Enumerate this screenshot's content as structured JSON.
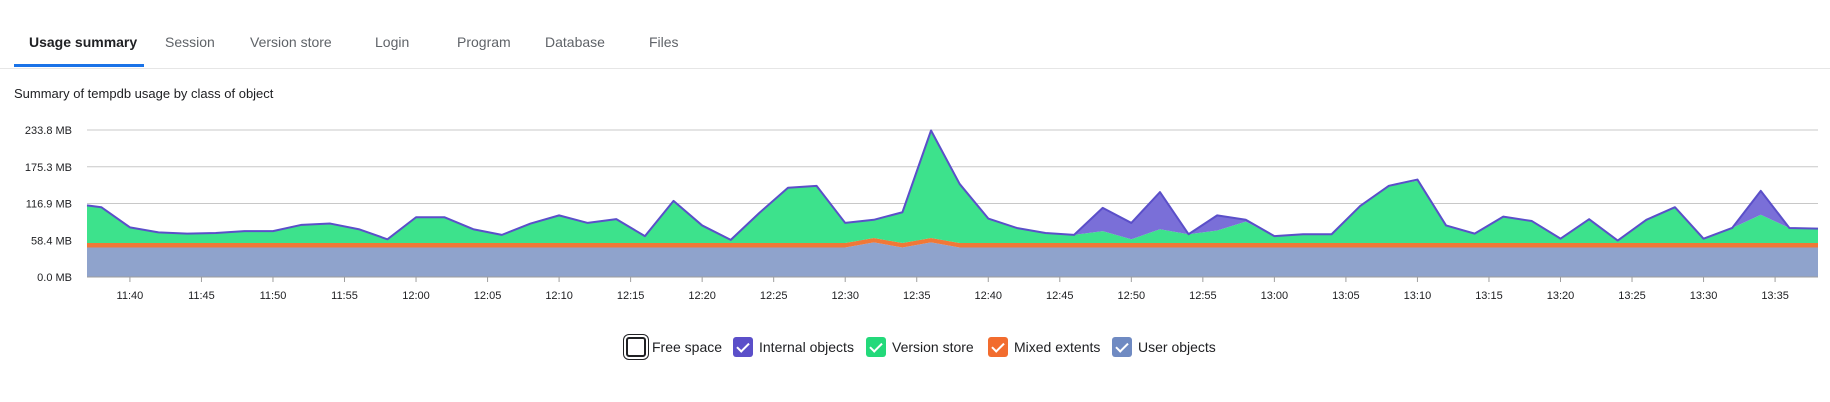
{
  "tabs": [
    {
      "label": "Usage summary",
      "active": true
    },
    {
      "label": "Session",
      "active": false
    },
    {
      "label": "Version store",
      "active": false
    },
    {
      "label": "Login",
      "active": false
    },
    {
      "label": "Program",
      "active": false
    },
    {
      "label": "Database",
      "active": false
    },
    {
      "label": "Files",
      "active": false
    }
  ],
  "subtitle": "Summary of tempdb usage by class of object",
  "chart_data": {
    "type": "area",
    "stacked": true,
    "grid": true,
    "legend_position": "bottom",
    "ylim": [
      0,
      233.8
    ],
    "y_ticks": [
      0,
      58.4,
      116.9,
      175.3,
      233.8
    ],
    "y_tick_labels": [
      "0.0 MB",
      "58.4 MB",
      "116.9 MB",
      "175.3 MB",
      "233.8 MB"
    ],
    "x_tick_labels": [
      "11:40",
      "11:45",
      "11:50",
      "11:55",
      "12:00",
      "12:05",
      "12:10",
      "12:15",
      "12:20",
      "12:25",
      "12:30",
      "12:35",
      "12:40",
      "12:45",
      "12:50",
      "12:55",
      "13:00",
      "13:05",
      "13:10",
      "13:15",
      "13:20",
      "13:25",
      "13:30",
      "13:35"
    ],
    "x_start": "11:37",
    "x_end": "13:38",
    "series": [
      {
        "name": "User objects",
        "color": "#8fa3cc",
        "points": [
          [
            "11:37",
            47
          ],
          [
            "12:30",
            47
          ],
          [
            "12:32",
            55
          ],
          [
            "12:34",
            47
          ],
          [
            "12:36",
            55
          ],
          [
            "12:38",
            47
          ],
          [
            "13:38",
            47
          ]
        ]
      },
      {
        "name": "Mixed extents",
        "color": "#f07837",
        "points": [
          [
            "11:37",
            7
          ],
          [
            "12:30",
            7
          ],
          [
            "12:32",
            7
          ],
          [
            "12:34",
            7
          ],
          [
            "12:36",
            7
          ],
          [
            "12:38",
            7
          ],
          [
            "13:38",
            7
          ]
        ]
      },
      {
        "name": "Version store",
        "color": "#3de28c",
        "points": [
          [
            "11:37",
            60
          ],
          [
            "11:38",
            57
          ],
          [
            "11:40",
            25
          ],
          [
            "11:42",
            17
          ],
          [
            "11:44",
            15
          ],
          [
            "11:46",
            16
          ],
          [
            "11:48",
            19
          ],
          [
            "11:50",
            19
          ],
          [
            "11:52",
            29
          ],
          [
            "11:54",
            31
          ],
          [
            "11:56",
            22
          ],
          [
            "11:58",
            6
          ],
          [
            "12:00",
            41
          ],
          [
            "12:02",
            41
          ],
          [
            "12:04",
            22
          ],
          [
            "12:06",
            13
          ],
          [
            "12:08",
            31
          ],
          [
            "12:10",
            44
          ],
          [
            "12:12",
            32
          ],
          [
            "12:14",
            38
          ],
          [
            "12:16",
            11
          ],
          [
            "12:18",
            67
          ],
          [
            "12:20",
            28
          ],
          [
            "12:22",
            5
          ],
          [
            "12:24",
            48
          ],
          [
            "12:26",
            88
          ],
          [
            "12:28",
            91
          ],
          [
            "12:30",
            32
          ],
          [
            "12:32",
            29
          ],
          [
            "12:34",
            49
          ],
          [
            "12:36",
            171
          ],
          [
            "12:38",
            94
          ],
          [
            "12:40",
            39
          ],
          [
            "12:42",
            24
          ],
          [
            "12:44",
            16
          ],
          [
            "12:46",
            13
          ],
          [
            "12:48",
            19
          ],
          [
            "12:50",
            6
          ],
          [
            "12:52",
            22
          ],
          [
            "12:54",
            14
          ],
          [
            "12:56",
            20
          ],
          [
            "12:58",
            34
          ],
          [
            "13:00",
            11
          ],
          [
            "13:02",
            14
          ],
          [
            "13:04",
            14
          ],
          [
            "13:06",
            59
          ],
          [
            "13:08",
            91
          ],
          [
            "13:10",
            99
          ],
          [
            "13:12",
            28
          ],
          [
            "13:14",
            15
          ],
          [
            "13:16",
            42
          ],
          [
            "13:18",
            35
          ],
          [
            "13:20",
            7
          ],
          [
            "13:22",
            38
          ],
          [
            "13:24",
            4
          ],
          [
            "13:26",
            37
          ],
          [
            "13:28",
            57
          ],
          [
            "13:30",
            7
          ],
          [
            "13:32",
            24
          ],
          [
            "13:34",
            45
          ],
          [
            "13:36",
            24
          ],
          [
            "13:38",
            23
          ]
        ]
      },
      {
        "name": "Internal objects",
        "color": "#7a6fd8",
        "points": [
          [
            "11:37",
            0
          ],
          [
            "12:46",
            0
          ],
          [
            "12:48",
            37
          ],
          [
            "12:50",
            26
          ],
          [
            "12:52",
            59
          ],
          [
            "12:54",
            0
          ],
          [
            "12:56",
            24
          ],
          [
            "12:58",
            3
          ],
          [
            "13:00",
            0
          ],
          [
            "13:06",
            0
          ],
          [
            "13:08",
            0
          ],
          [
            "13:10",
            2
          ],
          [
            "13:12",
            0
          ],
          [
            "13:32",
            0
          ],
          [
            "13:34",
            38
          ],
          [
            "13:36",
            0
          ],
          [
            "13:38",
            0
          ]
        ]
      },
      {
        "name": "Free space",
        "color": "#ffffff",
        "points": []
      }
    ]
  },
  "legend": [
    {
      "label": "Free space",
      "color": "#ffffff",
      "checked": false
    },
    {
      "label": "Internal objects",
      "color": "#5b4fc9",
      "checked": true
    },
    {
      "label": "Version store",
      "color": "#23d97a",
      "checked": true
    },
    {
      "label": "Mixed extents",
      "color": "#f26c2e",
      "checked": true
    },
    {
      "label": "User objects",
      "color": "#6f8ac2",
      "checked": true
    }
  ],
  "colors": {
    "accent": "#1a73e8",
    "outline": "#5b4fc9"
  }
}
